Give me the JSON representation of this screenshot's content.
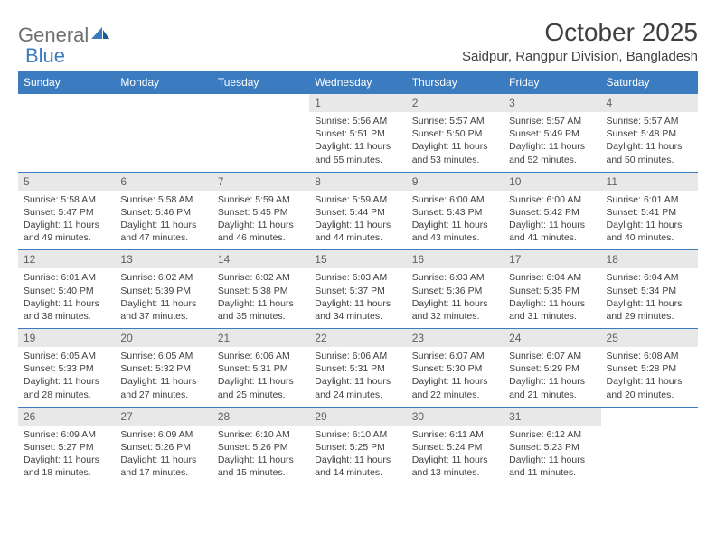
{
  "logo": {
    "text1": "General",
    "text2": "Blue"
  },
  "title": "October 2025",
  "location": "Saidpur, Rangpur Division, Bangladesh",
  "colors": {
    "header_bg": "#3b7bbf",
    "header_fg": "#ffffff",
    "daynum_bg": "#e8e8e8",
    "text": "#404040",
    "row_border": "#3b7bbf"
  },
  "fonts": {
    "title_size": 28,
    "location_size": 15,
    "weekday_size": 12,
    "daynum_size": 12,
    "body_size": 10.5
  },
  "weekdays": [
    "Sunday",
    "Monday",
    "Tuesday",
    "Wednesday",
    "Thursday",
    "Friday",
    "Saturday"
  ],
  "weeks": [
    [
      null,
      null,
      null,
      {
        "n": "1",
        "sunrise": "5:56 AM",
        "sunset": "5:51 PM",
        "daylight": "11 hours and 55 minutes."
      },
      {
        "n": "2",
        "sunrise": "5:57 AM",
        "sunset": "5:50 PM",
        "daylight": "11 hours and 53 minutes."
      },
      {
        "n": "3",
        "sunrise": "5:57 AM",
        "sunset": "5:49 PM",
        "daylight": "11 hours and 52 minutes."
      },
      {
        "n": "4",
        "sunrise": "5:57 AM",
        "sunset": "5:48 PM",
        "daylight": "11 hours and 50 minutes."
      }
    ],
    [
      {
        "n": "5",
        "sunrise": "5:58 AM",
        "sunset": "5:47 PM",
        "daylight": "11 hours and 49 minutes."
      },
      {
        "n": "6",
        "sunrise": "5:58 AM",
        "sunset": "5:46 PM",
        "daylight": "11 hours and 47 minutes."
      },
      {
        "n": "7",
        "sunrise": "5:59 AM",
        "sunset": "5:45 PM",
        "daylight": "11 hours and 46 minutes."
      },
      {
        "n": "8",
        "sunrise": "5:59 AM",
        "sunset": "5:44 PM",
        "daylight": "11 hours and 44 minutes."
      },
      {
        "n": "9",
        "sunrise": "6:00 AM",
        "sunset": "5:43 PM",
        "daylight": "11 hours and 43 minutes."
      },
      {
        "n": "10",
        "sunrise": "6:00 AM",
        "sunset": "5:42 PM",
        "daylight": "11 hours and 41 minutes."
      },
      {
        "n": "11",
        "sunrise": "6:01 AM",
        "sunset": "5:41 PM",
        "daylight": "11 hours and 40 minutes."
      }
    ],
    [
      {
        "n": "12",
        "sunrise": "6:01 AM",
        "sunset": "5:40 PM",
        "daylight": "11 hours and 38 minutes."
      },
      {
        "n": "13",
        "sunrise": "6:02 AM",
        "sunset": "5:39 PM",
        "daylight": "11 hours and 37 minutes."
      },
      {
        "n": "14",
        "sunrise": "6:02 AM",
        "sunset": "5:38 PM",
        "daylight": "11 hours and 35 minutes."
      },
      {
        "n": "15",
        "sunrise": "6:03 AM",
        "sunset": "5:37 PM",
        "daylight": "11 hours and 34 minutes."
      },
      {
        "n": "16",
        "sunrise": "6:03 AM",
        "sunset": "5:36 PM",
        "daylight": "11 hours and 32 minutes."
      },
      {
        "n": "17",
        "sunrise": "6:04 AM",
        "sunset": "5:35 PM",
        "daylight": "11 hours and 31 minutes."
      },
      {
        "n": "18",
        "sunrise": "6:04 AM",
        "sunset": "5:34 PM",
        "daylight": "11 hours and 29 minutes."
      }
    ],
    [
      {
        "n": "19",
        "sunrise": "6:05 AM",
        "sunset": "5:33 PM",
        "daylight": "11 hours and 28 minutes."
      },
      {
        "n": "20",
        "sunrise": "6:05 AM",
        "sunset": "5:32 PM",
        "daylight": "11 hours and 27 minutes."
      },
      {
        "n": "21",
        "sunrise": "6:06 AM",
        "sunset": "5:31 PM",
        "daylight": "11 hours and 25 minutes."
      },
      {
        "n": "22",
        "sunrise": "6:06 AM",
        "sunset": "5:31 PM",
        "daylight": "11 hours and 24 minutes."
      },
      {
        "n": "23",
        "sunrise": "6:07 AM",
        "sunset": "5:30 PM",
        "daylight": "11 hours and 22 minutes."
      },
      {
        "n": "24",
        "sunrise": "6:07 AM",
        "sunset": "5:29 PM",
        "daylight": "11 hours and 21 minutes."
      },
      {
        "n": "25",
        "sunrise": "6:08 AM",
        "sunset": "5:28 PM",
        "daylight": "11 hours and 20 minutes."
      }
    ],
    [
      {
        "n": "26",
        "sunrise": "6:09 AM",
        "sunset": "5:27 PM",
        "daylight": "11 hours and 18 minutes."
      },
      {
        "n": "27",
        "sunrise": "6:09 AM",
        "sunset": "5:26 PM",
        "daylight": "11 hours and 17 minutes."
      },
      {
        "n": "28",
        "sunrise": "6:10 AM",
        "sunset": "5:26 PM",
        "daylight": "11 hours and 15 minutes."
      },
      {
        "n": "29",
        "sunrise": "6:10 AM",
        "sunset": "5:25 PM",
        "daylight": "11 hours and 14 minutes."
      },
      {
        "n": "30",
        "sunrise": "6:11 AM",
        "sunset": "5:24 PM",
        "daylight": "11 hours and 13 minutes."
      },
      {
        "n": "31",
        "sunrise": "6:12 AM",
        "sunset": "5:23 PM",
        "daylight": "11 hours and 11 minutes."
      },
      null
    ]
  ],
  "labels": {
    "sunrise": "Sunrise:",
    "sunset": "Sunset:",
    "daylight": "Daylight:"
  }
}
